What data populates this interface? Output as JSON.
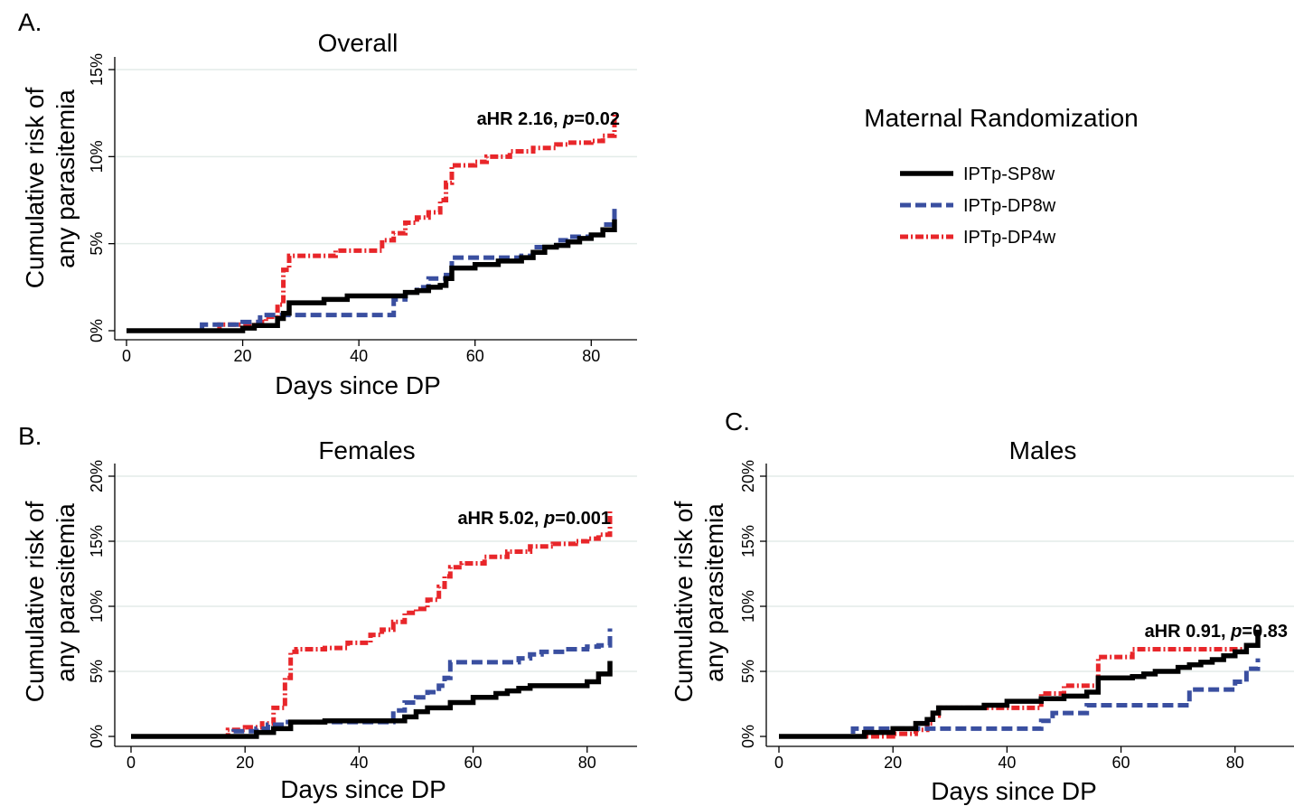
{
  "legend": {
    "title": "Maternal Randomization",
    "items": [
      {
        "label": "IPTp-SP8w",
        "color": "#000000",
        "style": "solid"
      },
      {
        "label": "IPTp-DP8w",
        "color": "#3a4fa0",
        "style": "dashed"
      },
      {
        "label": "IPTp-DP4w",
        "color": "#e8262a",
        "style": "dash-dot"
      }
    ]
  },
  "chart_data": [
    {
      "type": "line",
      "panel": "A.",
      "title": "Overall",
      "xlabel": "Days since DP",
      "ylabel": "Cumulative risk of any parasitemia",
      "ylabel_lines": [
        "Cumulative risk of",
        "any parasitemia"
      ],
      "xlim": [
        0,
        84
      ],
      "ylim": [
        0,
        15
      ],
      "xticks": [
        0,
        20,
        40,
        60,
        80
      ],
      "yticks": [
        0,
        5,
        10,
        15
      ],
      "ytick_labels": [
        "0%",
        "5%",
        "10%",
        "15%"
      ],
      "annotation": {
        "prefix": "aHR 2.16, ",
        "p_label": "p",
        "suffix": "=0.02"
      },
      "series": [
        {
          "name": "IPTp-SP8w",
          "x": [
            0,
            20,
            22,
            26,
            27,
            28,
            30,
            34,
            38,
            45,
            48,
            50,
            52,
            54,
            55,
            56,
            60,
            64,
            68,
            70,
            72,
            74,
            76,
            78,
            80,
            82,
            84
          ],
          "y": [
            0,
            0.15,
            0.3,
            0.7,
            1.0,
            1.6,
            1.6,
            1.8,
            2.0,
            2.0,
            2.2,
            2.3,
            2.5,
            2.6,
            3.0,
            3.6,
            3.8,
            4.0,
            4.2,
            4.5,
            4.8,
            4.9,
            5.1,
            5.3,
            5.5,
            5.8,
            6.4
          ]
        },
        {
          "name": "IPTp-DP8w",
          "x": [
            0,
            13,
            20,
            23,
            27,
            45,
            46,
            48,
            50,
            52,
            55,
            56,
            60,
            64,
            68,
            70,
            74,
            76,
            80,
            82,
            84
          ],
          "y": [
            0,
            0.35,
            0.5,
            0.9,
            0.9,
            0.9,
            1.8,
            2.2,
            2.5,
            3.0,
            3.2,
            4.2,
            4.2,
            4.2,
            4.3,
            4.8,
            5.2,
            5.4,
            5.5,
            6.1,
            7.0
          ]
        },
        {
          "name": "IPTp-DP4w",
          "x": [
            0,
            16,
            22,
            24,
            26,
            27,
            28,
            30,
            36,
            42,
            44,
            46,
            48,
            50,
            52,
            54,
            55,
            56,
            58,
            60,
            62,
            66,
            70,
            74,
            76,
            80,
            82,
            84
          ],
          "y": [
            0,
            0.35,
            0.5,
            0.8,
            1.5,
            3.5,
            4.3,
            4.3,
            4.6,
            4.6,
            5.2,
            5.6,
            6.2,
            6.5,
            6.8,
            7.5,
            8.5,
            9.5,
            9.5,
            9.7,
            10.0,
            10.3,
            10.5,
            10.7,
            10.8,
            10.9,
            11.2,
            12.5
          ]
        }
      ]
    },
    {
      "type": "line",
      "panel": "B.",
      "title": "Females",
      "xlabel": "Days since DP",
      "ylabel": "Cumulative risk of any parasitemia",
      "ylabel_lines": [
        "Cumulative risk of",
        "any parasitemia"
      ],
      "xlim": [
        0,
        84
      ],
      "ylim": [
        0,
        20
      ],
      "xticks": [
        0,
        20,
        40,
        60,
        80
      ],
      "yticks": [
        0,
        5,
        10,
        15,
        20
      ],
      "ytick_labels": [
        "0%",
        "5%",
        "10%",
        "15%",
        "20%"
      ],
      "annotation": {
        "prefix": "aHR 5.02, ",
        "p_label": "p",
        "suffix": "=0.001"
      },
      "series": [
        {
          "name": "IPTp-SP8w",
          "x": [
            0,
            22,
            25,
            28,
            34,
            44,
            48,
            50,
            52,
            56,
            60,
            64,
            66,
            68,
            70,
            80,
            82,
            84
          ],
          "y": [
            0,
            0.3,
            0.6,
            1.1,
            1.2,
            1.2,
            1.5,
            1.9,
            2.2,
            2.6,
            3.0,
            3.3,
            3.5,
            3.7,
            3.9,
            4.2,
            4.8,
            5.8
          ]
        },
        {
          "name": "IPTp-DP8w",
          "x": [
            0,
            18,
            22,
            24,
            27,
            28,
            44,
            46,
            48,
            50,
            52,
            54,
            55,
            56,
            60,
            66,
            68,
            70,
            72,
            76,
            80,
            82,
            84
          ],
          "y": [
            0,
            0.4,
            0.6,
            0.9,
            1.1,
            1.1,
            1.1,
            2.0,
            2.6,
            3.0,
            3.4,
            3.9,
            4.5,
            5.7,
            5.7,
            5.7,
            6.0,
            6.3,
            6.5,
            6.7,
            6.9,
            7.0,
            8.3
          ]
        },
        {
          "name": "IPTp-DP4w",
          "x": [
            0,
            17,
            20,
            23,
            25,
            27,
            28,
            29,
            34,
            38,
            42,
            44,
            46,
            48,
            50,
            52,
            54,
            55,
            56,
            58,
            62,
            66,
            70,
            74,
            78,
            80,
            82,
            84
          ],
          "y": [
            0,
            0.5,
            0.7,
            1.0,
            2.2,
            4.5,
            6.5,
            6.7,
            6.8,
            7.2,
            7.8,
            8.2,
            8.8,
            9.5,
            9.8,
            10.5,
            11.5,
            12.3,
            13.0,
            13.3,
            13.8,
            14.2,
            14.6,
            14.8,
            15.0,
            15.2,
            15.5,
            17.5
          ]
        }
      ]
    },
    {
      "type": "line",
      "panel": "C.",
      "title": "Males",
      "xlabel": "Days since DP",
      "ylabel": "Cumulative risk of any parasitemia",
      "ylabel_lines": [
        "Cumulative risk of",
        "any parasitemia"
      ],
      "xlim": [
        0,
        84
      ],
      "ylim": [
        0,
        20
      ],
      "xticks": [
        0,
        20,
        40,
        60,
        80
      ],
      "yticks": [
        0,
        5,
        10,
        15,
        20
      ],
      "ytick_labels": [
        "0%",
        "5%",
        "10%",
        "15%",
        "20%"
      ],
      "annotation": {
        "prefix": "aHR 0.91, ",
        "p_label": "p",
        "suffix": "=0.83"
      },
      "series": [
        {
          "name": "IPTp-SP8w",
          "x": [
            0,
            15,
            20,
            24,
            26,
            27,
            28,
            36,
            40,
            46,
            50,
            54,
            56,
            62,
            64,
            66,
            70,
            72,
            74,
            76,
            78,
            80,
            82,
            84
          ],
          "y": [
            0,
            0.3,
            0.6,
            1.0,
            1.3,
            1.8,
            2.2,
            2.4,
            2.7,
            2.9,
            3.1,
            3.4,
            4.5,
            4.6,
            4.8,
            5.0,
            5.3,
            5.5,
            5.7,
            5.9,
            6.2,
            6.5,
            7.0,
            8.2
          ]
        },
        {
          "name": "IPTp-DP8w",
          "x": [
            0,
            13,
            20,
            25,
            28,
            46,
            48,
            50,
            54,
            56,
            62,
            70,
            72,
            74,
            78,
            80,
            82,
            84
          ],
          "y": [
            0,
            0.6,
            0.6,
            0.6,
            0.6,
            1.2,
            1.8,
            1.8,
            2.4,
            2.4,
            2.4,
            2.4,
            3.6,
            3.6,
            3.6,
            4.2,
            5.2,
            6.0
          ]
        },
        {
          "name": "IPTp-DP4w",
          "x": [
            0,
            20,
            24,
            26,
            27,
            28,
            36,
            40,
            45,
            46,
            50,
            54,
            56,
            60,
            62,
            64,
            70,
            76,
            80,
            82,
            84
          ],
          "y": [
            0,
            0.2,
            0.5,
            1.0,
            1.6,
            2.2,
            2.2,
            2.2,
            2.2,
            3.3,
            3.9,
            3.9,
            6.1,
            6.1,
            6.7,
            6.7,
            6.7,
            6.7,
            6.7,
            7.0,
            7.6
          ]
        }
      ]
    }
  ]
}
